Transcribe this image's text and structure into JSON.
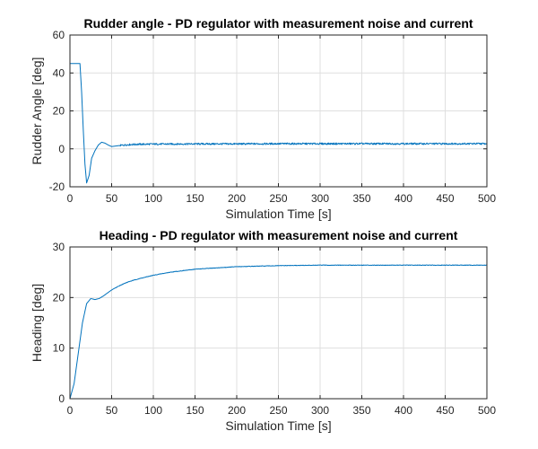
{
  "chart_data": [
    {
      "type": "line",
      "title": "Rudder angle - PD regulator with measurement noise and current",
      "xlabel": "Simulation Time [s]",
      "ylabel": "Rudder Angle [deg]",
      "xlim": [
        0,
        500
      ],
      "ylim": [
        -20,
        60
      ],
      "xticks": [
        0,
        50,
        100,
        150,
        200,
        250,
        300,
        350,
        400,
        450,
        500
      ],
      "yticks": [
        -20,
        0,
        20,
        40,
        60
      ],
      "grid": true,
      "line_color": "#0072BD",
      "series": [
        {
          "x": [
            0,
            12,
            14,
            16,
            18,
            20,
            23,
            26,
            30,
            34,
            38,
            42,
            46,
            50,
            55,
            60,
            70,
            80,
            100,
            150,
            200,
            250,
            300,
            350,
            400,
            450,
            500
          ],
          "values": [
            45,
            45,
            30,
            10,
            -8,
            -18,
            -14,
            -5,
            -1,
            2,
            3.5,
            3,
            2,
            1.2,
            1.5,
            1.8,
            2.2,
            2.4,
            2.5,
            2.6,
            2.6,
            2.7,
            2.7,
            2.7,
            2.7,
            2.7,
            2.7
          ]
        }
      ]
    },
    {
      "type": "line",
      "title": "Heading - PD regulator with measurement noise and current",
      "xlabel": "Simulation Time [s]",
      "ylabel": "Heading [deg]",
      "xlim": [
        0,
        500
      ],
      "ylim": [
        0,
        30
      ],
      "xticks": [
        0,
        50,
        100,
        150,
        200,
        250,
        300,
        350,
        400,
        450,
        500
      ],
      "yticks": [
        0,
        10,
        20,
        30
      ],
      "grid": true,
      "line_color": "#0072BD",
      "series": [
        {
          "x": [
            0,
            5,
            10,
            15,
            20,
            25,
            30,
            35,
            40,
            45,
            50,
            60,
            70,
            80,
            100,
            120,
            150,
            200,
            250,
            300,
            350,
            400,
            450,
            500
          ],
          "values": [
            0,
            3,
            9,
            15,
            18.8,
            19.8,
            19.6,
            19.8,
            20.3,
            20.9,
            21.5,
            22.4,
            23.1,
            23.6,
            24.4,
            25,
            25.6,
            26.1,
            26.3,
            26.4,
            26.4,
            26.4,
            26.4,
            26.4
          ]
        }
      ]
    }
  ]
}
